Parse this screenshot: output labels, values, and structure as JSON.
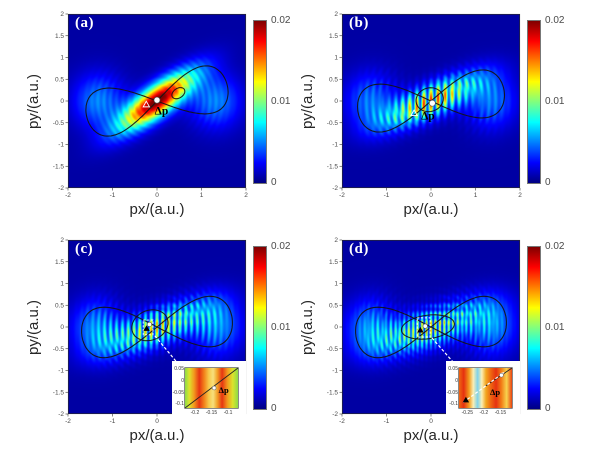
{
  "chart_data": {
    "type": "heatmap",
    "colormap": "jet",
    "xlabel": "px/(a.u.)",
    "ylabel": "py/(a.u.)",
    "x_range": [
      -2,
      2
    ],
    "y_range": [
      -2,
      2
    ],
    "x_ticks": [
      "-2",
      "-1",
      "0",
      "1",
      "2"
    ],
    "y_ticks": [
      "2",
      "1.5",
      "1",
      "0.5",
      "0",
      "-0.5",
      "-1",
      "-1.5",
      "-2"
    ],
    "colorbar": {
      "min": 0,
      "max": 0.02,
      "tick_labels": [
        "0.02",
        "0.01",
        "0"
      ]
    },
    "annotation_label": "Δp",
    "contour_color": "#141414",
    "arrow_color": "#ffffff",
    "panels": [
      {
        "label": "(a)",
        "x_ticks_shown": [
          "-2",
          "-1",
          "0",
          "1",
          "2"
        ],
        "dist": {
          "tilt": 37,
          "band_w": 0.32,
          "band_l": 1.0,
          "peak": 0.02,
          "fringe_spacing": 0,
          "fringe_depth": 0,
          "ring_spacing": 0.14,
          "ring_depth": 0.22,
          "lobe_amp": 0.0048,
          "checker_depth": 0
        },
        "contour": {
          "lx": 1.62,
          "ly": 0.55,
          "rot": 13,
          "loops": [
            {
              "cx": 0.48,
              "cy": 0.18,
              "rx": 0.16,
              "ry": 0.11,
              "rot": 35
            }
          ]
        },
        "markers": {
          "dot": [
            0.0,
            0.02
          ],
          "triangle": [
            -0.24,
            -0.08
          ],
          "triangle_style": "open",
          "dp": [
            0.1,
            -0.24
          ]
        }
      },
      {
        "label": "(b)",
        "x_ticks_shown": [
          "-2",
          "-1",
          "0",
          "1",
          "2"
        ],
        "dist": {
          "tilt": 25,
          "band_w": 0.34,
          "band_l": 1.05,
          "peak": 0.017,
          "fringe_spacing": 0.16,
          "fringe_depth": 0.82,
          "ring_spacing": 0.14,
          "ring_depth": 0.3,
          "lobe_amp": 0.0052,
          "checker_depth": 0
        },
        "contour": {
          "lx": 1.66,
          "ly": 0.55,
          "rot": 8,
          "loops": [
            {
              "cx": -0.03,
              "cy": 0.03,
              "rx": 0.31,
              "ry": 0.27,
              "rot": 20
            }
          ]
        },
        "markers": {
          "dot": [
            0.03,
            -0.05
          ],
          "triangle": [
            -0.38,
            -0.28
          ],
          "triangle_style": "open",
          "dp": [
            -0.07,
            -0.36
          ]
        }
      },
      {
        "label": "(c)",
        "x_ticks_shown": [
          "-2",
          "-1",
          "0"
        ],
        "dist": {
          "tilt": 22,
          "band_w": 0.38,
          "band_l": 1.1,
          "peak": 0.015,
          "fringe_spacing": 0.13,
          "fringe_depth": 0.88,
          "ring_spacing": 0.14,
          "ring_depth": 0.38,
          "lobe_amp": 0.006,
          "checker_depth": 0.3
        },
        "contour": {
          "lx": 1.7,
          "ly": 0.58,
          "rot": 6,
          "loops": [
            {
              "cx": -0.16,
              "cy": 0.04,
              "rx": 0.42,
              "ry": 0.34,
              "rot": 25
            }
          ]
        },
        "markers": {
          "dot": [
            -0.17,
            0.06
          ],
          "triangle": [
            -0.235,
            -0.035
          ],
          "triangle_style": "filled",
          "rect": [
            -0.31,
            -0.18,
            -0.09,
            0.16
          ]
        },
        "zoom_arrow": [
          -0.05,
          -0.2,
          0.6,
          -1.0
        ],
        "inset": {
          "x_range": [
            -0.23,
            -0.07
          ],
          "y_range": [
            -0.115,
            0.055
          ],
          "x_ticks": [
            "-0.2",
            "-0.15",
            "-0.1"
          ],
          "y_ticks": [
            "0.05",
            "0",
            "-0.05",
            "-0.1"
          ],
          "stripes": [
            [
              0,
              "#8cdc46"
            ],
            [
              8,
              "#dce32c"
            ],
            [
              17,
              "#f29a1e"
            ],
            [
              27,
              "#e63511"
            ],
            [
              36,
              "#f2811a"
            ],
            [
              45,
              "#f7c94a"
            ],
            [
              53,
              "#f7e07c"
            ],
            [
              61,
              "#f2a026"
            ],
            [
              70,
              "#e63511"
            ],
            [
              80,
              "#f29a1e"
            ],
            [
              90,
              "#dce32c"
            ],
            [
              100,
              "#8cdc46"
            ]
          ],
          "line": [
            [
              0,
              1
            ],
            [
              1,
              0
            ]
          ],
          "dot": [
            0.55,
            0.5
          ],
          "triangle": null,
          "arrow": null,
          "dp": [
            0.73,
            0.55
          ]
        }
      },
      {
        "label": "(d)",
        "x_ticks_shown": [
          "-2",
          "-1",
          "0"
        ],
        "dist": {
          "tilt": 20,
          "band_w": 0.4,
          "band_l": 1.1,
          "peak": 0.015,
          "fringe_spacing": 0.1,
          "fringe_depth": 0.88,
          "ring_spacing": 0.14,
          "ring_depth": 0.38,
          "lobe_amp": 0.006,
          "checker_depth": 0.55
        },
        "contour": {
          "lx": 1.7,
          "ly": 0.58,
          "rot": 6,
          "loops": [
            {
              "cx": -0.07,
              "cy": 0.0,
              "rx": 0.6,
              "ry": 0.27,
              "rot": 8
            }
          ]
        },
        "markers": {
          "dot": [
            -0.13,
            0.02
          ],
          "triangle": [
            -0.24,
            -0.07
          ],
          "triangle_style": "filled",
          "rect": [
            -0.31,
            -0.23,
            -0.02,
            0.21
          ]
        },
        "zoom_arrow": [
          0.02,
          -0.25,
          0.62,
          -0.95
        ],
        "inset": {
          "x_range": [
            -0.275,
            -0.115
          ],
          "y_range": [
            -0.115,
            0.055
          ],
          "x_ticks": [
            "-0.25",
            "-0.2",
            "-0.15"
          ],
          "y_ticks": [
            "0.05",
            "0",
            "-0.05",
            "-0.1"
          ],
          "stripes": [
            [
              0,
              "#ee6711"
            ],
            [
              9,
              "#e63110"
            ],
            [
              19,
              "#f29b1c"
            ],
            [
              27,
              "#fbeeb4"
            ],
            [
              35,
              "#7fd2ea"
            ],
            [
              43,
              "#fbeeb4"
            ],
            [
              51,
              "#f2a51e"
            ],
            [
              60,
              "#ee6711"
            ],
            [
              70,
              "#e63110"
            ],
            [
              80,
              "#f27d16"
            ],
            [
              90,
              "#f7d24e"
            ],
            [
              100,
              "#e9420f"
            ]
          ],
          "line": [
            [
              0.5,
              0.45
            ],
            [
              1,
              0
            ]
          ],
          "dot": [
            0.8,
            0.18
          ],
          "triangle": [
            0.13,
            0.8
          ],
          "arrow": [
            [
              0.08,
              0.86
            ],
            [
              0.86,
              0.1
            ]
          ],
          "dp": [
            0.68,
            0.6
          ]
        }
      }
    ]
  }
}
